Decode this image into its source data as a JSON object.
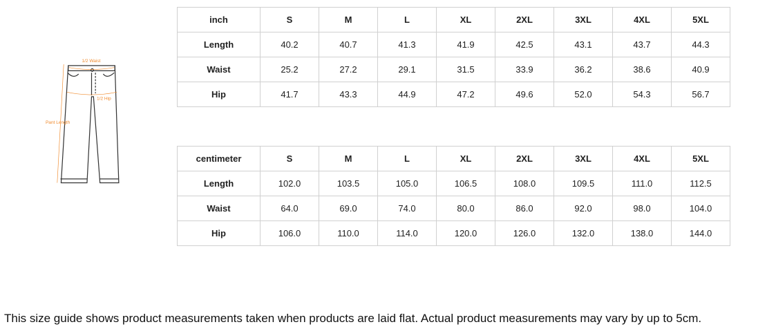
{
  "diagram": {
    "waist_label": "1/2 Waist",
    "hip_label": "1/2 Hip",
    "length_label": "Pant Length",
    "accent_color": "#f08a2c"
  },
  "inch_table": {
    "headers": [
      "inch",
      "S",
      "M",
      "L",
      "XL",
      "2XL",
      "3XL",
      "4XL",
      "5XL"
    ],
    "rows": [
      [
        "Length",
        "40.2",
        "40.7",
        "41.3",
        "41.9",
        "42.5",
        "43.1",
        "43.7",
        "44.3"
      ],
      [
        "Waist",
        "25.2",
        "27.2",
        "29.1",
        "31.5",
        "33.9",
        "36.2",
        "38.6",
        "40.9"
      ],
      [
        "Hip",
        "41.7",
        "43.3",
        "44.9",
        "47.2",
        "49.6",
        "52.0",
        "54.3",
        "56.7"
      ]
    ]
  },
  "cm_table": {
    "headers": [
      "centimeter",
      "S",
      "M",
      "L",
      "XL",
      "2XL",
      "3XL",
      "4XL",
      "5XL"
    ],
    "rows": [
      [
        "Length",
        "102.0",
        "103.5",
        "105.0",
        "106.5",
        "108.0",
        "109.5",
        "111.0",
        "112.5"
      ],
      [
        "Waist",
        "64.0",
        "69.0",
        "74.0",
        "80.0",
        "86.0",
        "92.0",
        "98.0",
        "104.0"
      ],
      [
        "Hip",
        "106.0",
        "110.0",
        "114.0",
        "120.0",
        "126.0",
        "132.0",
        "138.0",
        "144.0"
      ]
    ]
  },
  "note": "This size guide shows product measurements taken when products are laid flat. Actual product measurements may vary by up to 5cm."
}
